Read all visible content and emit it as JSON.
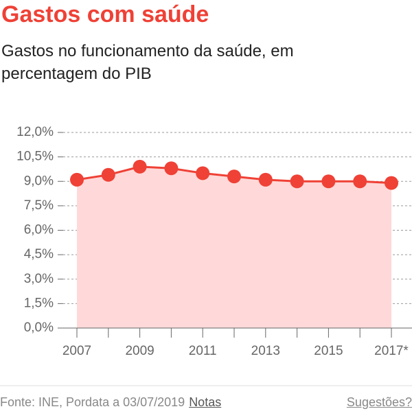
{
  "chart_data": {
    "type": "area",
    "title": "Gastos com saúde",
    "subtitle": "Gastos no funcionamento da saúde, em percentagem do PIB",
    "categories": [
      "2007",
      null,
      "2009",
      null,
      "2011",
      null,
      "2013",
      null,
      "2015",
      null,
      "2017*"
    ],
    "values": [
      9.1,
      9.4,
      9.9,
      9.8,
      9.5,
      9.3,
      9.1,
      9.0,
      9.0,
      9.0,
      8.9
    ],
    "color": "#ef4136",
    "fill_color": "#ffd9d9",
    "ylim": [
      0,
      12
    ],
    "yticks": [
      {
        "value": 0,
        "label": "0,0%"
      },
      {
        "value": 1.5,
        "label": "1,5%"
      },
      {
        "value": 3,
        "label": "3,0%"
      },
      {
        "value": 4.5,
        "label": "4,5%"
      },
      {
        "value": 6,
        "label": "6,0%"
      },
      {
        "value": 7.5,
        "label": "7,5%"
      },
      {
        "value": 9,
        "label": "9,0%"
      },
      {
        "value": 10.5,
        "label": "10,5%"
      },
      {
        "value": 12,
        "label": "12,0%"
      }
    ],
    "grid": true,
    "source": "Fonte: INE, Pordata a 03/07/2019",
    "notes_link": "Notas",
    "suggestions_link": "Sugestões?"
  }
}
